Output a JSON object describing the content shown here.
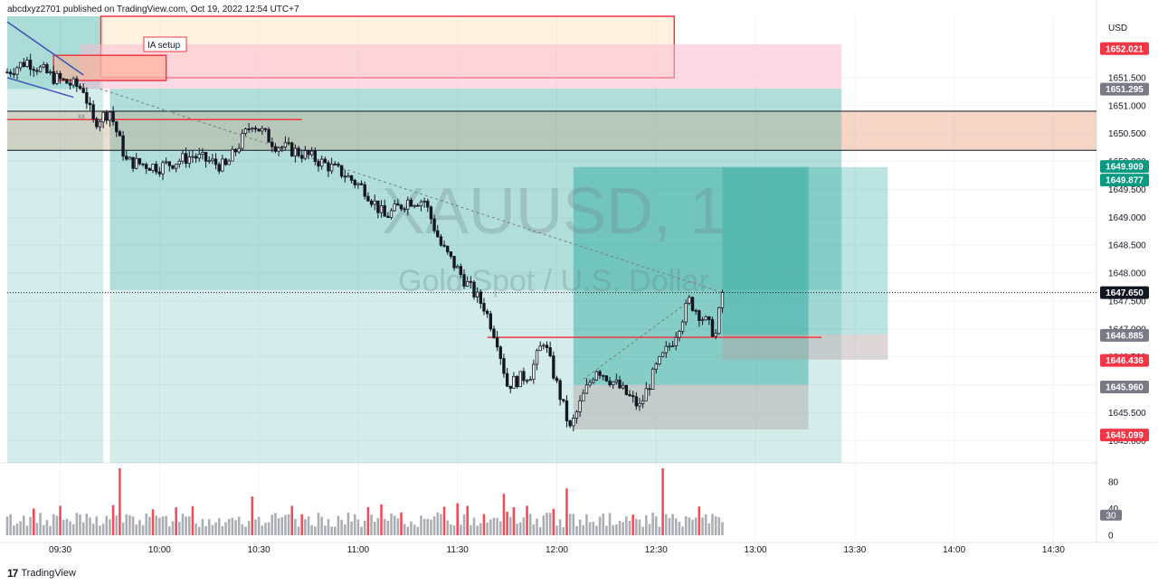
{
  "header": {
    "publisher": "abcdxyz2701 published on TradingView.com, Oct 19, 2022 12:54 UTC+7"
  },
  "footer": {
    "brand": "TradingView",
    "logo_icon": "tradingview-logo-icon"
  },
  "watermark": {
    "symbol": "XAUUSD, 1",
    "description": "Gold Spot / U.S. Dollar"
  },
  "annotation": {
    "setup_label": "IA setup",
    "marker": "xx"
  },
  "colors": {
    "up": "#131722",
    "down": "#131722",
    "long_zone": "#26a69a",
    "stop_zone": "#b2a3a3",
    "red": "#f23645",
    "volume_grey": "#9598a1",
    "volume_red": "#f23645"
  },
  "chart_data": {
    "type": "candlestick",
    "x_ticks": [
      "09:30",
      "10:00",
      "10:30",
      "11:00",
      "11:30",
      "12:00",
      "12:30",
      "13:00",
      "13:30",
      "14:00",
      "14:30"
    ],
    "y_ticks": [
      "1651.500",
      "1651.000",
      "1650.500",
      "1650.000",
      "1649.500",
      "1649.000",
      "1648.500",
      "1648.000",
      "1647.500",
      "1647.000",
      "1646.500",
      "1646.000",
      "1645.500",
      "1645.000"
    ],
    "price_labels": [
      {
        "value": "1652.021",
        "kind": "red"
      },
      {
        "value": "1651.295",
        "kind": "grey"
      },
      {
        "value": "1649.909",
        "kind": "green"
      },
      {
        "value": "1649.877",
        "kind": "green"
      },
      {
        "value": "1647.650",
        "kind": "dark"
      },
      {
        "value": "1646.885",
        "kind": "grey"
      },
      {
        "value": "1646.436",
        "kind": "red"
      },
      {
        "value": "1645.960",
        "kind": "grey"
      },
      {
        "value": "1645.099",
        "kind": "red"
      }
    ],
    "currency": "USD",
    "volume_ticks": [
      "80",
      "40",
      "0"
    ],
    "volume_current": "30",
    "ylim": [
      1644.6,
      1652.6
    ],
    "time_range": [
      "09:14",
      "14:43"
    ],
    "last_time": "12:50",
    "candles_close_path": [
      {
        "t": "09:14",
        "p": 1651.6
      },
      {
        "t": "09:20",
        "p": 1651.8
      },
      {
        "t": "09:28",
        "p": 1651.5
      },
      {
        "t": "09:37",
        "p": 1651.3
      },
      {
        "t": "09:40",
        "p": 1650.7
      },
      {
        "t": "09:45",
        "p": 1650.9
      },
      {
        "t": "09:50",
        "p": 1650.0
      },
      {
        "t": "10:00",
        "p": 1649.9
      },
      {
        "t": "10:10",
        "p": 1650.1
      },
      {
        "t": "10:20",
        "p": 1649.9
      },
      {
        "t": "10:28",
        "p": 1650.7
      },
      {
        "t": "10:35",
        "p": 1650.3
      },
      {
        "t": "10:45",
        "p": 1650.1
      },
      {
        "t": "10:55",
        "p": 1649.8
      },
      {
        "t": "11:02",
        "p": 1649.5
      },
      {
        "t": "11:08",
        "p": 1649.0
      },
      {
        "t": "11:15",
        "p": 1649.3
      },
      {
        "t": "11:20",
        "p": 1649.3
      },
      {
        "t": "11:25",
        "p": 1648.5
      },
      {
        "t": "11:33",
        "p": 1647.8
      },
      {
        "t": "11:38",
        "p": 1647.4
      },
      {
        "t": "11:42",
        "p": 1646.8
      },
      {
        "t": "11:45",
        "p": 1646.0
      },
      {
        "t": "11:52",
        "p": 1646.2
      },
      {
        "t": "11:56",
        "p": 1646.8
      },
      {
        "t": "12:00",
        "p": 1646.0
      },
      {
        "t": "12:04",
        "p": 1645.2
      },
      {
        "t": "12:08",
        "p": 1645.8
      },
      {
        "t": "12:12",
        "p": 1646.3
      },
      {
        "t": "12:18",
        "p": 1646.0
      },
      {
        "t": "12:25",
        "p": 1645.6
      },
      {
        "t": "12:30",
        "p": 1646.3
      },
      {
        "t": "12:35",
        "p": 1646.8
      },
      {
        "t": "12:40",
        "p": 1647.5
      },
      {
        "t": "12:44",
        "p": 1647.2
      },
      {
        "t": "12:48",
        "p": 1646.9
      },
      {
        "t": "12:50",
        "p": 1647.65
      }
    ],
    "volume_spikes": [
      {
        "t": "09:22",
        "v": 40
      },
      {
        "t": "09:30",
        "v": 44
      },
      {
        "t": "09:46",
        "v": 45
      },
      {
        "t": "09:48",
        "v": 100
      },
      {
        "t": "10:28",
        "v": 58
      },
      {
        "t": "10:40",
        "v": 44
      },
      {
        "t": "11:03",
        "v": 42
      },
      {
        "t": "11:33",
        "v": 44
      },
      {
        "t": "11:44",
        "v": 62
      },
      {
        "t": "12:03",
        "v": 70
      },
      {
        "t": "12:32",
        "v": 100
      }
    ]
  }
}
